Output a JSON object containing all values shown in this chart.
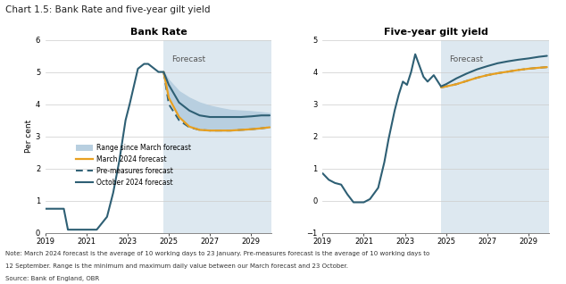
{
  "title": "Chart 1.5: Bank Rate and five-year gilt yield",
  "left_title": "Bank Rate",
  "right_title": "Five-year gilt yield",
  "ylabel": "Per cent",
  "forecast_start": 2024.75,
  "forecast_label": "Forecast",
  "background_color": "#ffffff",
  "forecast_color": "#dde8f0",
  "range_color": "#b8cfe0",
  "note1": "Note: March 2024 forecast is the average of 10 working days to 23 January. Pre-measures forecast is the average of 10 working days to",
  "note2": "12 September. Range is the minimum and maximum daily value between our March forecast and 23 October.",
  "note3": "Source: Bank of England, OBR",
  "colors": {
    "oct2024": "#2e5f74",
    "march2024": "#e8a020",
    "premeasures": "#2e5f74"
  },
  "bank_rate": {
    "historical_x": [
      2019.0,
      2019.5,
      2019.9,
      2020.1,
      2020.4,
      2020.6,
      2021.0,
      2021.5,
      2022.0,
      2022.3,
      2022.6,
      2022.9,
      2023.1,
      2023.5,
      2023.8,
      2024.0,
      2024.5,
      2024.75
    ],
    "historical_y": [
      0.75,
      0.75,
      0.75,
      0.1,
      0.1,
      0.1,
      0.1,
      0.1,
      0.5,
      1.25,
      2.25,
      3.5,
      4.0,
      5.1,
      5.25,
      5.25,
      5.0,
      5.0
    ],
    "oct2024_x": [
      2024.75,
      2025.0,
      2025.5,
      2026.0,
      2026.5,
      2027.0,
      2027.5,
      2028.0,
      2028.5,
      2029.0,
      2029.5,
      2029.9
    ],
    "oct2024_y": [
      5.0,
      4.6,
      4.05,
      3.8,
      3.65,
      3.6,
      3.6,
      3.6,
      3.6,
      3.62,
      3.65,
      3.65
    ],
    "march2024_x": [
      2024.75,
      2025.0,
      2025.5,
      2026.0,
      2026.5,
      2027.0,
      2027.5,
      2028.0,
      2028.5,
      2029.0,
      2029.5,
      2029.9
    ],
    "march2024_y": [
      5.0,
      4.2,
      3.6,
      3.3,
      3.2,
      3.18,
      3.18,
      3.18,
      3.2,
      3.22,
      3.25,
      3.28
    ],
    "premeasures_x": [
      2024.75,
      2025.0,
      2025.5,
      2026.0,
      2026.5,
      2027.0,
      2027.5,
      2028.0,
      2028.5,
      2029.0,
      2029.5,
      2029.9
    ],
    "premeasures_y": [
      5.0,
      4.0,
      3.5,
      3.28,
      3.2,
      3.18,
      3.18,
      3.18,
      3.2,
      3.22,
      3.25,
      3.28
    ],
    "range_upper_x": [
      2024.75,
      2025.0,
      2025.5,
      2026.0,
      2026.5,
      2027.0,
      2027.5,
      2028.0,
      2028.5,
      2029.0,
      2029.5,
      2029.9
    ],
    "range_upper_y": [
      5.0,
      4.75,
      4.4,
      4.2,
      4.05,
      3.95,
      3.88,
      3.82,
      3.8,
      3.78,
      3.75,
      3.72
    ],
    "range_lower_x": [
      2024.75,
      2025.0,
      2025.5,
      2026.0,
      2026.5,
      2027.0,
      2027.5,
      2028.0,
      2028.5,
      2029.0,
      2029.5,
      2029.9
    ],
    "range_lower_y": [
      5.0,
      4.2,
      3.6,
      3.3,
      3.2,
      3.18,
      3.18,
      3.18,
      3.2,
      3.22,
      3.25,
      3.28
    ],
    "ylim": [
      0,
      6
    ],
    "yticks": [
      0,
      1,
      2,
      3,
      4,
      5,
      6
    ],
    "xlim": [
      2019,
      2030
    ],
    "xticks": [
      2019,
      2021,
      2023,
      2025,
      2027,
      2029
    ]
  },
  "gilt": {
    "historical_x": [
      2019.0,
      2019.3,
      2019.6,
      2019.9,
      2020.2,
      2020.5,
      2020.8,
      2021.0,
      2021.3,
      2021.7,
      2022.0,
      2022.2,
      2022.5,
      2022.7,
      2022.9,
      2023.1,
      2023.3,
      2023.5,
      2023.7,
      2023.9,
      2024.1,
      2024.4,
      2024.75
    ],
    "historical_y": [
      0.85,
      0.65,
      0.55,
      0.5,
      0.2,
      -0.05,
      -0.05,
      -0.05,
      0.05,
      0.4,
      1.2,
      1.9,
      2.8,
      3.3,
      3.7,
      3.6,
      4.0,
      4.55,
      4.2,
      3.85,
      3.7,
      3.9,
      3.55
    ],
    "oct2024_x": [
      2024.75,
      2025.0,
      2025.5,
      2026.0,
      2026.5,
      2027.0,
      2027.5,
      2028.0,
      2028.5,
      2029.0,
      2029.5,
      2029.9
    ],
    "oct2024_y": [
      3.55,
      3.62,
      3.8,
      3.95,
      4.08,
      4.18,
      4.27,
      4.33,
      4.38,
      4.42,
      4.47,
      4.5
    ],
    "march2024_x": [
      2024.75,
      2025.0,
      2025.5,
      2026.0,
      2026.5,
      2027.0,
      2027.5,
      2028.0,
      2028.5,
      2029.0,
      2029.5,
      2029.9
    ],
    "march2024_y": [
      3.52,
      3.55,
      3.62,
      3.72,
      3.82,
      3.9,
      3.96,
      4.01,
      4.06,
      4.1,
      4.13,
      4.15
    ],
    "premeasures_x": [
      2024.75,
      2025.0,
      2025.5,
      2026.0,
      2026.5,
      2027.0,
      2027.5,
      2028.0,
      2028.5,
      2029.0,
      2029.5,
      2029.9
    ],
    "premeasures_y": [
      3.52,
      3.55,
      3.62,
      3.72,
      3.82,
      3.9,
      3.96,
      4.01,
      4.06,
      4.1,
      4.13,
      4.15
    ],
    "ylim": [
      -1,
      5
    ],
    "yticks": [
      -1,
      0,
      1,
      2,
      3,
      4,
      5
    ],
    "xlim": [
      2019,
      2030
    ],
    "xticks": [
      2019,
      2021,
      2023,
      2025,
      2027,
      2029
    ]
  },
  "legend": {
    "range_label": "Range since March forecast",
    "march_label": "March 2024 forecast",
    "pre_label": "Pre-measures forecast",
    "oct_label": "October 2024 forecast"
  }
}
